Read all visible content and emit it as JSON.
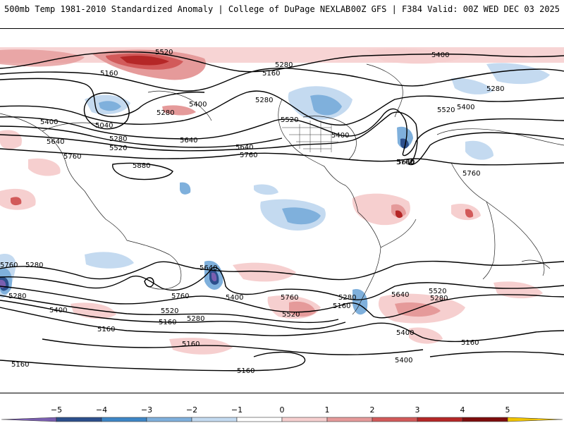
{
  "header": {
    "left_title": "500mb Temp 1981-2010 Standardized Anomaly | College of DuPage NEXLAB",
    "right_title": "00Z GFS | F384 Valid: 00Z WED DEC 03 2025"
  },
  "contour_labels": {
    "l1": "5520",
    "l2": "5400",
    "l3": "5280",
    "l4": "5160",
    "l5": "5160",
    "l6": "5280",
    "l7": "5520",
    "l8": "5400",
    "l9": "5400",
    "l10": "5040",
    "l11": "5280",
    "l12": "5520",
    "l13": "5400",
    "l14": "5640",
    "l15": "5640",
    "l16": "5760",
    "l17": "5880",
    "l18": "5760",
    "l19": "5520",
    "l20": "5280",
    "l21": "5400",
    "l22": "5760",
    "l23": "5640",
    "l24": "5760",
    "l25": "5640",
    "l26": "5760",
    "l27": "5640",
    "l28": "5280",
    "l29": "5400",
    "l30": "5760",
    "l31": "5520",
    "l32": "5160",
    "l33": "5400",
    "l34": "5160",
    "l35": "5280",
    "l36": "5760",
    "l37": "5280",
    "l38": "5520",
    "l39": "5160",
    "l40": "5640",
    "l41": "5520",
    "l42": "5280",
    "l43": "5400",
    "l44": "5160",
    "l45": "5160",
    "l46": "5160",
    "l47": "5160",
    "l48": "5280",
    "l49": "5400",
    "l50": "5280"
  },
  "colorbar": {
    "ticks": [
      "−5",
      "−4",
      "−3",
      "−2",
      "−1",
      "0",
      "1",
      "2",
      "3",
      "4",
      "5"
    ],
    "colors": [
      "#7a5fb0",
      "#2c4f8c",
      "#3e86c6",
      "#7fb0dc",
      "#c4daf0",
      "#ffffff",
      "#f6cfcf",
      "#e59a9a",
      "#d25a5a",
      "#b52727",
      "#7e0d0d",
      "#f2c500"
    ]
  }
}
